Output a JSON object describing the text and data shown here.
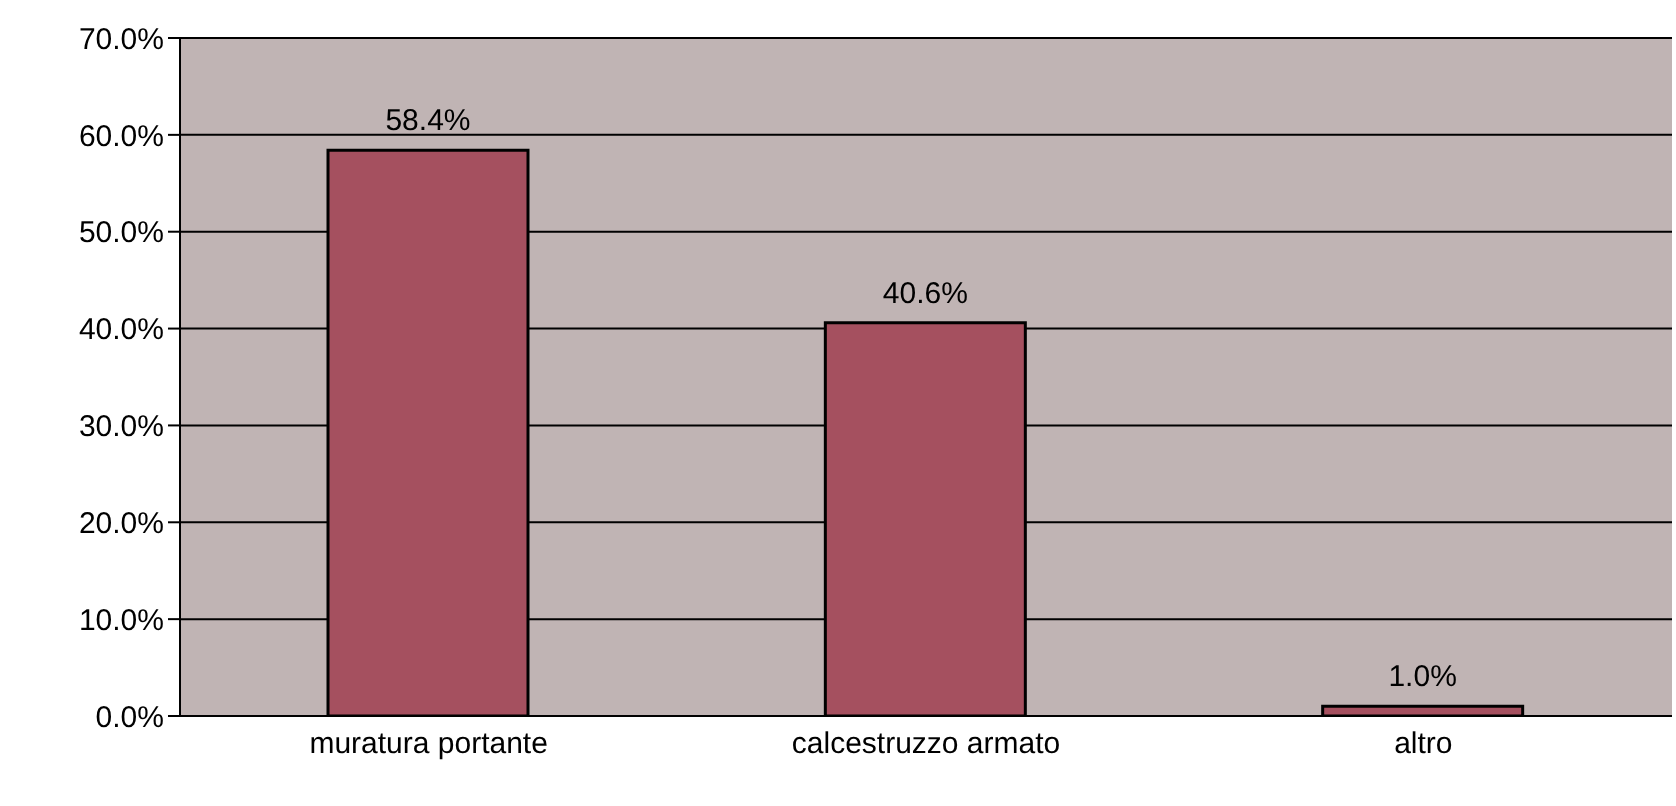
{
  "chart_data": {
    "type": "bar",
    "categories": [
      "muratura portante",
      "calcestruzzo armato",
      "altro"
    ],
    "values": [
      58.4,
      40.6,
      1.0
    ],
    "color": "#a5505f",
    "value_labels": [
      "58.4%",
      "40.6%",
      "1.0%"
    ],
    "ylim": [
      0,
      70
    ],
    "yticks": [
      {
        "value": 0,
        "label": "0.0%"
      },
      {
        "value": 10,
        "label": "10.0%"
      },
      {
        "value": 20,
        "label": "20.0%"
      },
      {
        "value": 30,
        "label": "30.0%"
      },
      {
        "value": 40,
        "label": "40.0%"
      },
      {
        "value": 50,
        "label": "50.0%"
      },
      {
        "value": 60,
        "label": "60.0%"
      },
      {
        "value": 70,
        "label": "70.0%"
      }
    ],
    "grid": "y",
    "legend": false
  }
}
